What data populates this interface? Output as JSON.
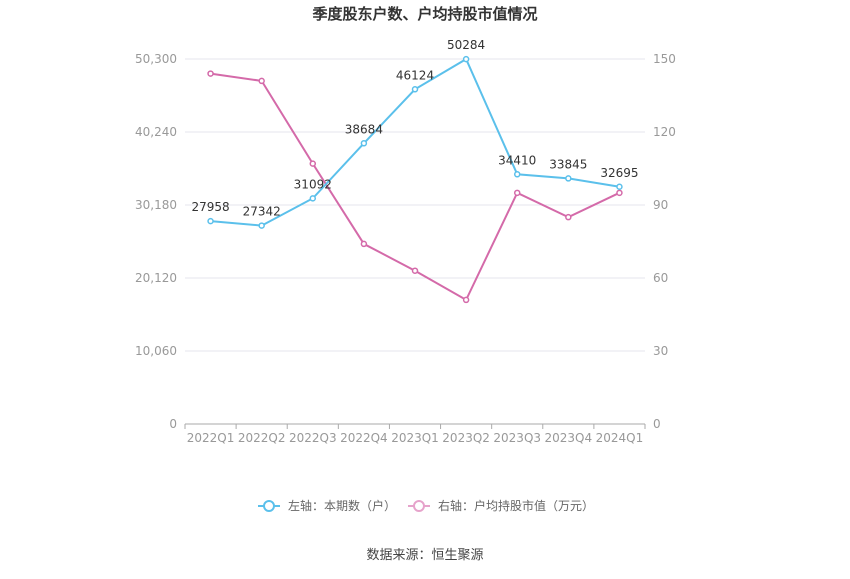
{
  "title": "季度股东户数、户均持股市值情况",
  "source": "数据来源：恒生聚源",
  "colors": {
    "left_series": "#5bc0eb",
    "right_series": "#d46aa9",
    "grid": "#e6e6ee",
    "axis_text": "#999999",
    "label_text": "#333333"
  },
  "chart_data": {
    "type": "line",
    "title": "季度股东户数、户均持股市值情况",
    "categories": [
      "2022Q1",
      "2022Q2",
      "2022Q3",
      "2022Q4",
      "2023Q1",
      "2023Q2",
      "2023Q3",
      "2023Q4",
      "2024Q1"
    ],
    "y_left": {
      "ticks": [
        "0",
        "10,060",
        "20,120",
        "30,180",
        "40,240",
        "50,300"
      ],
      "ylim": [
        0,
        50300
      ]
    },
    "y_right": {
      "ticks": [
        "0",
        "30",
        "60",
        "90",
        "120",
        "150"
      ],
      "ylim": [
        0,
        150
      ]
    },
    "series": [
      {
        "name": "左轴：本期数（户）",
        "axis": "left",
        "values": [
          27958,
          27342,
          31092,
          38684,
          46124,
          50284,
          34410,
          33845,
          32695
        ],
        "labels": [
          "27958",
          "27342",
          "31092",
          "38684",
          "46124",
          "50284",
          "34410",
          "33845",
          "32695"
        ]
      },
      {
        "name": "右轴：户均持股市值（万元）",
        "axis": "right",
        "values": [
          144,
          141,
          107,
          74,
          63,
          51,
          95,
          85,
          95
        ]
      }
    ],
    "legend_position": "bottom",
    "grid": true
  }
}
